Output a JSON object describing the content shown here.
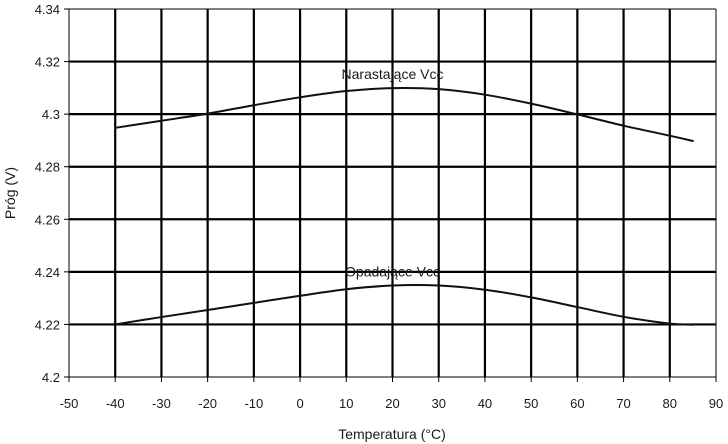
{
  "chart_data": {
    "type": "line",
    "title": "",
    "xlabel": "Temperatura (°C)",
    "ylabel": "Próg (V)",
    "xlim": [
      -50,
      90
    ],
    "ylim": [
      4.2,
      4.34
    ],
    "x_ticks": [
      -50,
      -40,
      -30,
      -20,
      -10,
      0,
      10,
      20,
      30,
      40,
      50,
      60,
      70,
      80,
      90
    ],
    "y_ticks": [
      4.2,
      4.22,
      4.24,
      4.26,
      4.28,
      4.3,
      4.32,
      4.34
    ],
    "x_tick_labels": [
      "-50",
      "-40",
      "-30",
      "-20",
      "-10",
      "0",
      "10",
      "20",
      "30",
      "40",
      "50",
      "60",
      "70",
      "80",
      "90"
    ],
    "y_tick_labels": [
      "4.2",
      "4.22",
      "4.24",
      "4.26",
      "4.28",
      "4.3",
      "4.32",
      "4.34"
    ],
    "grid": true,
    "legend": "none",
    "series": [
      {
        "name": "Narastające Vcc",
        "x": [
          -40,
          -30,
          -20,
          -10,
          0,
          10,
          20,
          30,
          40,
          50,
          60,
          70,
          80,
          85
        ],
        "y": [
          4.2948,
          4.2975,
          4.3002,
          4.3034,
          4.3064,
          4.3088,
          4.3099,
          4.3095,
          4.3074,
          4.304,
          4.2999,
          4.2956,
          4.2918,
          4.2898
        ]
      },
      {
        "name": "Opadające Vcc",
        "x": [
          -40,
          -30,
          -20,
          -10,
          0,
          10,
          20,
          30,
          40,
          50,
          60,
          70,
          80,
          85
        ],
        "y": [
          4.22,
          4.2228,
          4.2255,
          4.2282,
          4.2309,
          4.2334,
          4.2348,
          4.2348,
          4.2332,
          4.2303,
          4.2266,
          4.2229,
          4.2203,
          4.2199
        ]
      }
    ]
  }
}
